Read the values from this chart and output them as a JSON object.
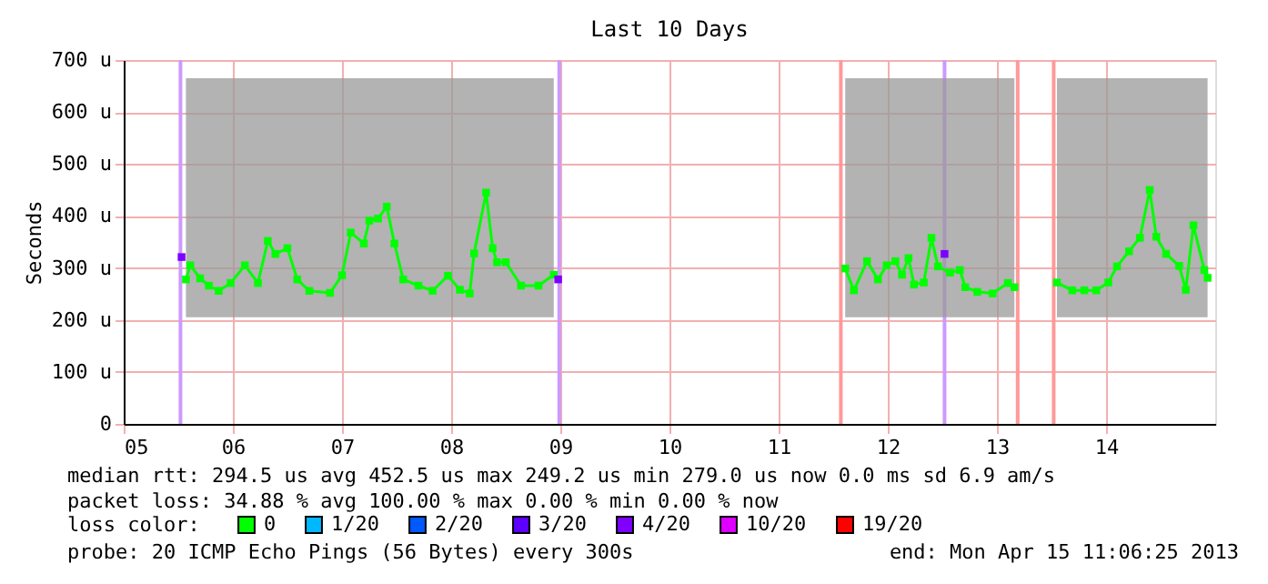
{
  "chart_data": {
    "type": "line",
    "title": "Last 10 Days",
    "ylabel": "Seconds",
    "legend_title": "loss color:",
    "legend": "bottom",
    "grid": true,
    "marker": "square",
    "line_style": "solid",
    "xlim": [
      5,
      15
    ],
    "xticks": [
      {
        "value": 5,
        "label": "05"
      },
      {
        "value": 6,
        "label": "06"
      },
      {
        "value": 7,
        "label": "07"
      },
      {
        "value": 8,
        "label": "08"
      },
      {
        "value": 9,
        "label": "09"
      },
      {
        "value": 10,
        "label": "10"
      },
      {
        "value": 11,
        "label": "11"
      },
      {
        "value": 12,
        "label": "12"
      },
      {
        "value": 13,
        "label": "13"
      },
      {
        "value": 14,
        "label": "14"
      }
    ],
    "ylim": [
      0,
      700
    ],
    "yticks": [
      0,
      {
        "value": 100,
        "label": "100 u"
      },
      {
        "value": 200,
        "label": "200 u"
      },
      {
        "value": 300,
        "label": "300 u"
      },
      {
        "value": 400,
        "label": "400 u"
      },
      {
        "value": 500,
        "label": "500 u"
      },
      {
        "value": 600,
        "label": "600 u"
      },
      {
        "value": 700,
        "label": "700 u"
      }
    ],
    "series": [
      {
        "name": "0",
        "color": "#00ff00",
        "x": [
          5.57,
          5.61,
          5.7,
          5.78,
          5.87,
          5.98,
          6.11,
          6.23,
          6.32,
          6.39,
          6.5,
          6.59,
          6.7,
          6.89,
          7.0,
          7.08,
          7.2,
          7.25,
          7.33,
          7.41,
          7.48,
          7.56,
          7.7,
          7.83,
          7.97,
          8.08,
          8.17,
          8.21,
          8.32,
          8.38,
          8.42,
          8.5,
          8.64,
          8.8,
          8.94,
          10.0,
          11.61,
          11.69,
          11.81,
          11.91,
          11.99,
          12.07,
          12.13,
          12.19,
          12.24,
          12.33,
          12.4,
          12.46,
          12.57,
          12.66,
          12.71,
          12.82,
          12.96,
          13.1,
          13.16,
          13.35,
          13.55,
          13.69,
          13.8,
          13.91,
          14.02,
          14.1,
          14.21,
          14.31,
          14.4,
          14.46,
          14.55,
          14.67,
          14.73,
          14.8,
          14.9,
          14.93
        ],
        "values": [
          278,
          305,
          280,
          266,
          256,
          271,
          305,
          271,
          352,
          327,
          338,
          278,
          256,
          252,
          286,
          368,
          347,
          391,
          395,
          418,
          347,
          278,
          266,
          256,
          285,
          258,
          251,
          328,
          445,
          338,
          311,
          311,
          266,
          266,
          287,
          null,
          299,
          257,
          313,
          278,
          305,
          313,
          287,
          319,
          268,
          272,
          358,
          303,
          291,
          296,
          263,
          254,
          251,
          271,
          263,
          null,
          272,
          257,
          257,
          257,
          272,
          303,
          332,
          358,
          450,
          360,
          327,
          304,
          258,
          382,
          296,
          281
        ],
        "lower": [
          205,
          205,
          205,
          205,
          205,
          205,
          205,
          205,
          205,
          205,
          205,
          205,
          205,
          205,
          205,
          205,
          205,
          205,
          205,
          205,
          205,
          205,
          205,
          205,
          205,
          205,
          205,
          205,
          205,
          205,
          205,
          205,
          205,
          205,
          205,
          null,
          205,
          205,
          205,
          205,
          205,
          205,
          205,
          205,
          205,
          205,
          205,
          205,
          205,
          205,
          205,
          205,
          205,
          205,
          205,
          null,
          205,
          205,
          205,
          205,
          205,
          205,
          205,
          205,
          205,
          205,
          205,
          205,
          205,
          205,
          205,
          205
        ],
        "upper": [
          665,
          665,
          665,
          665,
          665,
          665,
          665,
          665,
          665,
          665,
          665,
          665,
          665,
          665,
          665,
          665,
          665,
          665,
          665,
          665,
          665,
          665,
          665,
          665,
          665,
          665,
          665,
          665,
          665,
          665,
          665,
          665,
          665,
          665,
          665,
          null,
          665,
          665,
          665,
          665,
          665,
          665,
          665,
          665,
          665,
          665,
          665,
          665,
          665,
          665,
          665,
          665,
          665,
          665,
          665,
          null,
          665,
          665,
          665,
          665,
          665,
          665,
          665,
          665,
          665,
          665,
          665,
          665,
          665,
          665,
          665,
          665
        ]
      },
      {
        "name": "1/20",
        "color": "#00b8ff",
        "type": "scatter"
      },
      {
        "name": "2/20",
        "color": "#0059ff",
        "type": "scatter"
      },
      {
        "name": "3/20",
        "color": "#5e00ff",
        "type": "scatter"
      },
      {
        "name": "4/20",
        "color": "#7e00ff",
        "type": "scatter",
        "x": [
          5.53,
          8.98,
          12.52
        ],
        "values": [
          321,
          278,
          327
        ]
      },
      {
        "name": "10/20",
        "color": "#dd00ff",
        "type": "scatter"
      },
      {
        "name": "19/20",
        "color": "#ff0000",
        "type": "scatter"
      }
    ],
    "ref_lines": [
      {
        "axis": "x",
        "value": 5.52,
        "label": null,
        "color": "#cc99ff"
      },
      {
        "axis": "x",
        "value": 8.99,
        "label": null,
        "color": "#cc99ff"
      },
      {
        "axis": "x",
        "value": 12.52,
        "label": null,
        "color": "#cc99ff"
      },
      {
        "axis": "x",
        "value": 11.57,
        "label": null,
        "color": "#ff9999"
      },
      {
        "axis": "x",
        "value": 13.19,
        "label": null,
        "color": "#ff9999"
      },
      {
        "axis": "x",
        "value": 13.52,
        "label": null,
        "color": "#ff9999"
      }
    ],
    "annotations": [
      "median rtt:  294.5 us avg  452.5 us max  249.2 us min  279.0 us now  0.0 ms sd  6.9   am/s",
      "packet loss: 34.88 % avg  100.00 % max  0.00 % min  0.00 % now",
      "probe:       20 ICMP Echo Pings (56 Bytes) every 300s",
      "end: Mon Apr 15 11:06:25 2013"
    ]
  }
}
